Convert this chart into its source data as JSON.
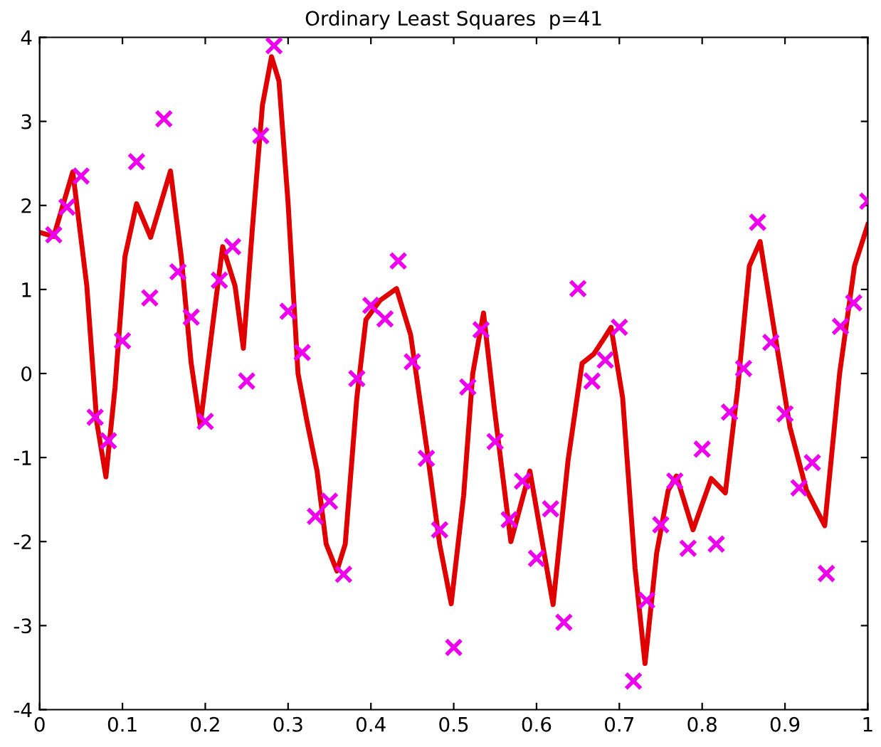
{
  "chart_data": {
    "type": "line",
    "title": "Ordinary Least Squares  p=41",
    "xlim": [
      0,
      1
    ],
    "xticks": [
      0,
      0.1,
      0.2,
      0.3,
      0.4,
      0.5,
      0.6,
      0.7,
      0.8,
      0.9,
      1
    ],
    "ylim": [
      -4,
      4
    ],
    "yticks": [
      -4,
      -3,
      -2,
      -1,
      0,
      1,
      2,
      3,
      4
    ],
    "grid": false,
    "legend": false,
    "series": [
      {
        "color": "#e00000",
        "line_style": "solid",
        "marker": "none",
        "x": [
          0,
          0.017,
          0.04,
          0.057,
          0.069,
          0.08,
          0.091,
          0.103,
          0.117,
          0.134,
          0.158,
          0.171,
          0.183,
          0.194,
          0.209,
          0.221,
          0.236,
          0.246,
          0.257,
          0.269,
          0.28,
          0.289,
          0.3,
          0.312,
          0.323,
          0.335,
          0.346,
          0.359,
          0.369,
          0.383,
          0.394,
          0.411,
          0.431,
          0.448,
          0.468,
          0.483,
          0.497,
          0.512,
          0.523,
          0.536,
          0.549,
          0.569,
          0.592,
          0.62,
          0.638,
          0.655,
          0.669,
          0.681,
          0.69,
          0.704,
          0.719,
          0.731,
          0.745,
          0.759,
          0.769,
          0.789,
          0.811,
          0.828,
          0.843,
          0.857,
          0.87,
          0.886,
          0.906,
          0.926,
          0.948,
          0.966,
          0.984,
          1.0
        ],
        "values": [
          1.68,
          1.63,
          2.4,
          1.04,
          -0.58,
          -1.23,
          -0.17,
          1.39,
          2.02,
          1.62,
          2.41,
          1.39,
          0.12,
          -0.61,
          0.58,
          1.51,
          1.04,
          0.3,
          1.74,
          3.19,
          3.77,
          3.48,
          2.03,
          0.0,
          -0.58,
          -1.16,
          -2.03,
          -2.35,
          -2.03,
          -0.29,
          0.64,
          0.87,
          1.01,
          0.46,
          -0.93,
          -2.03,
          -2.74,
          -1.45,
          0.0,
          0.72,
          -0.41,
          -2.0,
          -1.16,
          -2.75,
          -1.04,
          0.12,
          0.23,
          0.41,
          0.55,
          -0.29,
          -2.32,
          -3.45,
          -2.14,
          -1.39,
          -1.22,
          -1.86,
          -1.25,
          -1.42,
          -0.17,
          1.28,
          1.57,
          0.58,
          -0.64,
          -1.39,
          -1.81,
          0.0,
          1.28,
          1.77
        ]
      },
      {
        "type": "scatter",
        "color": "#ee00ee",
        "marker": "cross",
        "x": [
          0.017,
          0.033,
          0.05,
          0.067,
          0.083,
          0.1,
          0.117,
          0.133,
          0.15,
          0.167,
          0.183,
          0.2,
          0.217,
          0.233,
          0.25,
          0.267,
          0.283,
          0.3,
          0.317,
          0.333,
          0.35,
          0.367,
          0.383,
          0.4,
          0.417,
          0.433,
          0.45,
          0.467,
          0.483,
          0.5,
          0.517,
          0.533,
          0.55,
          0.567,
          0.583,
          0.6,
          0.617,
          0.633,
          0.65,
          0.667,
          0.683,
          0.7,
          0.717,
          0.733,
          0.75,
          0.767,
          0.783,
          0.8,
          0.817,
          0.833,
          0.85,
          0.867,
          0.883,
          0.9,
          0.917,
          0.933,
          0.95,
          0.967,
          0.983,
          1.0
        ],
        "values": [
          1.65,
          1.98,
          2.35,
          -0.52,
          -0.8,
          0.39,
          2.52,
          0.9,
          3.03,
          1.21,
          0.67,
          -0.57,
          1.11,
          1.51,
          -0.09,
          2.83,
          3.9,
          0.74,
          0.25,
          -1.7,
          -1.52,
          -2.39,
          -0.06,
          0.81,
          0.65,
          1.34,
          0.14,
          -1.01,
          -1.86,
          -3.26,
          -0.16,
          0.52,
          -0.81,
          -1.74,
          -1.28,
          -2.2,
          -1.61,
          -2.96,
          1.01,
          -0.09,
          0.16,
          0.55,
          -3.66,
          -2.7,
          -1.8,
          -1.28,
          -2.08,
          -0.9,
          -2.03,
          -0.46,
          0.06,
          1.8,
          0.37,
          -0.48,
          -1.36,
          -1.06,
          -2.38,
          0.56,
          0.84,
          2.05
        ]
      }
    ]
  }
}
